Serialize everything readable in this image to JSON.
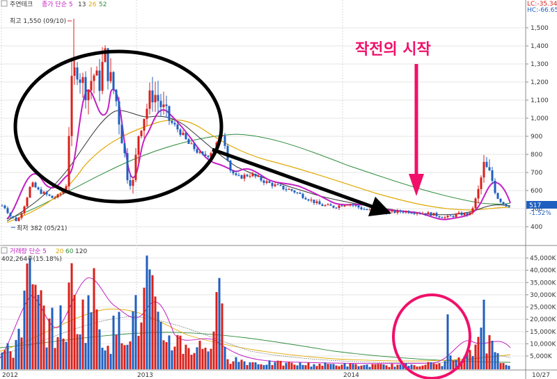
{
  "header": {
    "stock_name": "주연테크",
    "ma_label": "종가 단순 5",
    "ma_periods": [
      "13",
      "26",
      "52"
    ],
    "volume_label": "거래량 단순 5",
    "volume_periods": [
      "20",
      "60",
      "120"
    ],
    "volume_current": "402,264주(15.18%)",
    "top_right_lines": [
      "LC:-35.34",
      "HC:-66.65"
    ],
    "current_price_tag": "517",
    "current_change_tag": "-1.52%"
  },
  "annotations": {
    "high_label": "최고 1,550 (09/10)",
    "low_label": "최저 382 (05/21)",
    "headline": "작전의 시작"
  },
  "colors": {
    "up": "#d9201b",
    "down": "#1f5fbf",
    "ma5": "#c41fc4",
    "ma13": "#333333",
    "ma26": "#e0a800",
    "ma52": "#2e8b3a",
    "annotation": "#f0106a",
    "grid": "#e4e4e4"
  },
  "chart_data": [
    {
      "type": "candlestick",
      "title": "",
      "y_ticks": [
        "1,500",
        "1,400",
        "1,300",
        "1,200",
        "1,100",
        "1,000",
        "900",
        "800",
        "700",
        "600",
        "500",
        "400"
      ],
      "ylim": [
        340,
        1600
      ],
      "x_ticks": [
        "2012",
        "2013",
        "2014"
      ],
      "x_end_label": "10/27",
      "legend": "top-left",
      "grid": true,
      "series_names": [
        "5",
        "13",
        "26",
        "52"
      ],
      "high": 1550,
      "low": 382,
      "last_close": 517
    },
    {
      "type": "bar",
      "title": "",
      "y_ticks": [
        "45,000K",
        "40,000K",
        "35,000K",
        "30,000K",
        "25,000K",
        "20,000K",
        "15,000K",
        "10,000K",
        "5,000K"
      ],
      "ylim": [
        0,
        49000
      ],
      "legend": "top-left",
      "grid": true,
      "series_names": [
        "5",
        "20",
        "60",
        "120"
      ]
    }
  ]
}
